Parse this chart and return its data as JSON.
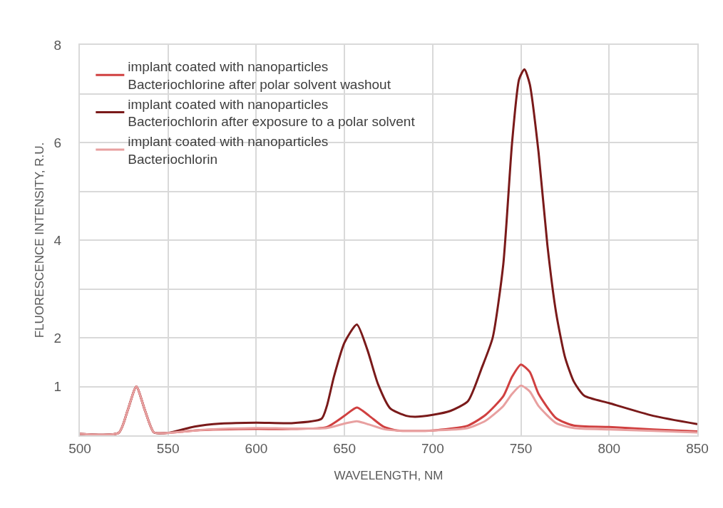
{
  "chart_data": {
    "type": "line",
    "xlabel": "WAVELENGTH, NM",
    "ylabel": "FLUORESCENCE INTENSITY, R.U.",
    "xlim": [
      500,
      850
    ],
    "xticks": [
      500,
      550,
      600,
      650,
      700,
      750,
      800,
      850
    ],
    "ylim": [
      0,
      8
    ],
    "yticks": [
      {
        "value": 1,
        "label": "1"
      },
      2,
      {
        "value": 3,
        "label": null
      },
      4,
      {
        "value": 5,
        "label": null
      },
      6,
      {
        "value": 7,
        "label": null
      },
      8
    ],
    "grid": true,
    "legend": "top left",
    "marker": "none",
    "line_style": "solid",
    "series": [
      {
        "name": "implant coated with nanoparticles\nBacteriochlorine after polar solvent washout",
        "color": "#d04040",
        "x": [
          500,
          522,
          527,
          532,
          537,
          542,
          550,
          565,
          580,
          600,
          620,
          640,
          650,
          657,
          664,
          672,
          680,
          700,
          720,
          730,
          740,
          745,
          750,
          755,
          760,
          770,
          780,
          800,
          825,
          850
        ],
        "values": [
          0.03,
          0.05,
          0.5,
          1.0,
          0.5,
          0.06,
          0.05,
          0.1,
          0.12,
          0.13,
          0.13,
          0.17,
          0.4,
          0.57,
          0.4,
          0.18,
          0.1,
          0.1,
          0.2,
          0.42,
          0.8,
          1.2,
          1.45,
          1.3,
          0.85,
          0.35,
          0.2,
          0.17,
          0.12,
          0.08
        ]
      },
      {
        "name": "implant coated with nanoparticles\nBacteriochlorin after exposure to a polar solvent",
        "color": "#7a1a1a",
        "x": [
          500,
          522,
          527,
          532,
          537,
          542,
          550,
          565,
          580,
          600,
          620,
          637,
          640,
          644,
          650,
          657,
          663,
          669,
          676,
          685,
          690,
          700,
          710,
          720,
          728,
          734,
          740,
          745,
          749,
          752,
          755,
          760,
          765,
          770,
          775,
          780,
          786,
          800,
          825,
          850
        ],
        "values": [
          0.03,
          0.05,
          0.5,
          1.0,
          0.5,
          0.06,
          0.05,
          0.18,
          0.24,
          0.26,
          0.25,
          0.34,
          0.6,
          1.2,
          1.9,
          2.27,
          1.75,
          1.05,
          0.55,
          0.4,
          0.38,
          0.42,
          0.5,
          0.7,
          1.4,
          2.0,
          3.5,
          6.0,
          7.3,
          7.5,
          7.2,
          5.8,
          3.9,
          2.5,
          1.6,
          1.1,
          0.81,
          0.66,
          0.4,
          0.23
        ]
      },
      {
        "name": "implant coated with nanoparticles\nBacteriochlorin",
        "color": "#e8a0a0",
        "x": [
          500,
          522,
          527,
          532,
          537,
          542,
          550,
          565,
          580,
          600,
          620,
          640,
          650,
          657,
          664,
          672,
          680,
          700,
          720,
          730,
          740,
          745,
          750,
          755,
          760,
          770,
          780,
          800,
          825,
          850
        ],
        "values": [
          0.03,
          0.05,
          0.5,
          1.0,
          0.5,
          0.06,
          0.05,
          0.1,
          0.13,
          0.15,
          0.14,
          0.15,
          0.24,
          0.29,
          0.22,
          0.13,
          0.1,
          0.1,
          0.15,
          0.3,
          0.6,
          0.85,
          1.02,
          0.9,
          0.6,
          0.25,
          0.15,
          0.12,
          0.09,
          0.06
        ]
      }
    ]
  }
}
